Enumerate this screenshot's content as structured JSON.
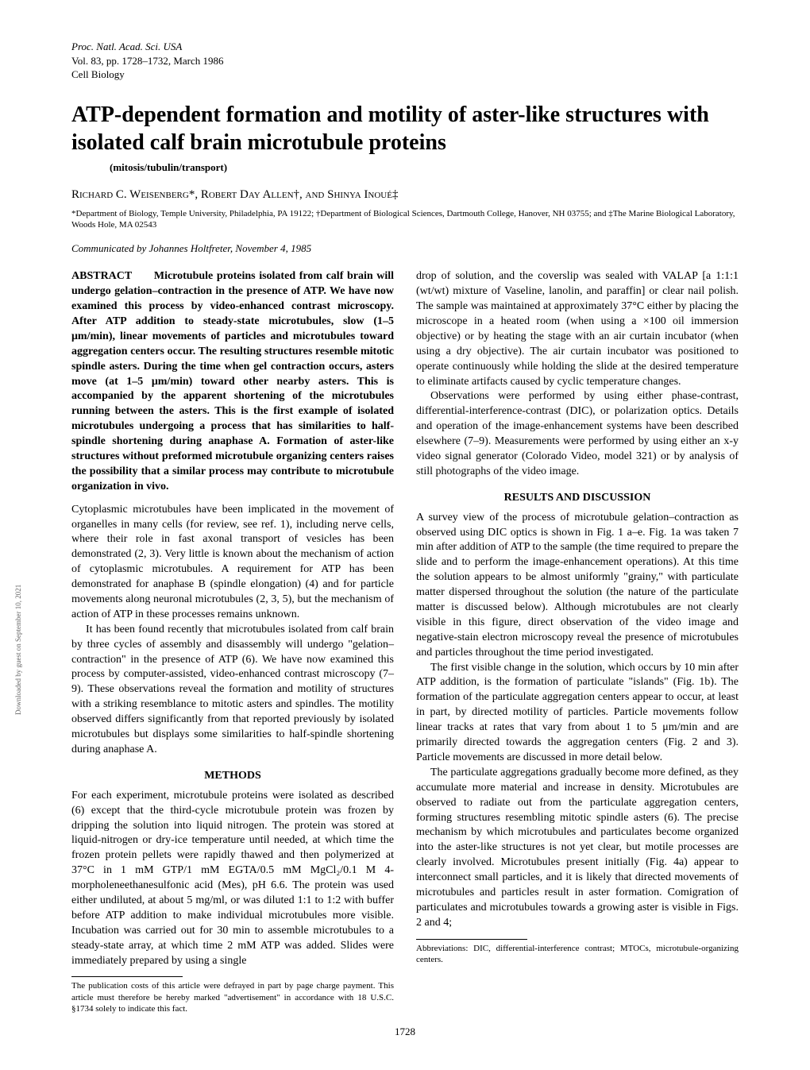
{
  "journal": {
    "line1": "Proc. Natl. Acad. Sci. USA",
    "line2": "Vol. 83, pp. 1728–1732, March 1986",
    "line3": "Cell Biology"
  },
  "title": "ATP-dependent formation and motility of aster-like structures with isolated calf brain microtubule proteins",
  "keywords": "(mitosis/tubulin/transport)",
  "authors": "Richard C. Weisenberg*, Robert Day Allen†, and Shinya Inoué‡",
  "affiliations": "*Department of Biology, Temple University, Philadelphia, PA 19122; †Department of Biological Sciences, Dartmouth College, Hanover, NH 03755; and ‡The Marine Biological Laboratory, Woods Hole, MA 02543",
  "communicated": "Communicated by Johannes Holtfreter, November 4, 1985",
  "abstract_label": "ABSTRACT",
  "abstract_body": "Microtubule proteins isolated from calf brain will undergo gelation–contraction in the presence of ATP. We have now examined this process by video-enhanced contrast microscopy. After ATP addition to steady-state microtubules, slow (1–5 μm/min), linear movements of particles and microtubules toward aggregation centers occur. The resulting structures resemble mitotic spindle asters. During the time when gel contraction occurs, asters move (at 1–5 μm/min) toward other nearby asters. This is accompanied by the apparent shortening of the microtubules running between the asters. This is the first example of isolated microtubules undergoing a process that has similarities to half-spindle shortening during anaphase A. Formation of aster-like structures without preformed microtubule organizing centers raises the possibility that a similar process may contribute to microtubule organization in vivo.",
  "left_col": {
    "p1": "Cytoplasmic microtubules have been implicated in the movement of organelles in many cells (for review, see ref. 1), including nerve cells, where their role in fast axonal transport of vesicles has been demonstrated (2, 3). Very little is known about the mechanism of action of cytoplasmic microtubules. A requirement for ATP has been demonstrated for anaphase B (spindle elongation) (4) and for particle movements along neuronal microtubules (2, 3, 5), but the mechanism of action of ATP in these processes remains unknown.",
    "p2": "It has been found recently that microtubules isolated from calf brain by three cycles of assembly and disassembly will undergo \"gelation–contraction\" in the presence of ATP (6). We have now examined this process by computer-assisted, video-enhanced contrast microscopy (7–9). These observations reveal the formation and motility of structures with a striking resemblance to mitotic asters and spindles. The motility observed differs significantly from that reported previously by isolated microtubules but displays some similarities to half-spindle shortening during anaphase A.",
    "methods_heading": "METHODS",
    "p3": "For each experiment, microtubule proteins were isolated as described (6) except that the third-cycle microtubule protein was frozen by dripping the solution into liquid nitrogen. The protein was stored at liquid-nitrogen or dry-ice temperature until needed, at which time the frozen protein pellets were rapidly thawed and then polymerized at 37°C in 1 mM GTP/1 mM EGTA/0.5 mM MgCl₂/0.1 M 4-morpholeneethanesulfonic acid (Mes), pH 6.6. The protein was used either undiluted, at about 5 mg/ml, or was diluted 1:1 to 1:2 with buffer before ATP addition to make individual microtubules more visible. Incubation was carried out for 30 min to assemble microtubules to a steady-state array, at which time 2 mM ATP was added. Slides were immediately prepared by using a single",
    "footnote": "The publication costs of this article were defrayed in part by page charge payment. This article must therefore be hereby marked \"advertisement\" in accordance with 18 U.S.C. §1734 solely to indicate this fact."
  },
  "right_col": {
    "p1": "drop of solution, and the coverslip was sealed with VALAP [a 1:1:1 (wt/wt) mixture of Vaseline, lanolin, and paraffin] or clear nail polish. The sample was maintained at approximately 37°C either by placing the microscope in a heated room (when using a ×100 oil immersion objective) or by heating the stage with an air curtain incubator (when using a dry objective). The air curtain incubator was positioned to operate continuously while holding the slide at the desired temperature to eliminate artifacts caused by cyclic temperature changes.",
    "p2": "Observations were performed by using either phase-contrast, differential-interference-contrast (DIC), or polarization optics. Details and operation of the image-enhancement systems have been described elsewhere (7–9). Measurements were performed by using either an x-y video signal generator (Colorado Video, model 321) or by analysis of still photographs of the video image.",
    "results_heading": "RESULTS AND DISCUSSION",
    "p3": "A survey view of the process of microtubule gelation–contraction as observed using DIC optics is shown in Fig. 1 a–e. Fig. 1a was taken 7 min after addition of ATP to the sample (the time required to prepare the slide and to perform the image-enhancement operations). At this time the solution appears to be almost uniformly \"grainy,\" with particulate matter dispersed throughout the solution (the nature of the particulate matter is discussed below). Although microtubules are not clearly visible in this figure, direct observation of the video image and negative-stain electron microscopy reveal the presence of microtubules and particles throughout the time period investigated.",
    "p4": "The first visible change in the solution, which occurs by 10 min after ATP addition, is the formation of particulate \"islands\" (Fig. 1b). The formation of the particulate aggregation centers appear to occur, at least in part, by directed motility of particles. Particle movements follow linear tracks at rates that vary from about 1 to 5 μm/min and are primarily directed towards the aggregation centers (Fig. 2 and 3). Particle movements are discussed in more detail below.",
    "p5": "The particulate aggregations gradually become more defined, as they accumulate more material and increase in density. Microtubules are observed to radiate out from the particulate aggregation centers, forming structures resembling mitotic spindle asters (6). The precise mechanism by which microtubules and particulates become organized into the aster-like structures is not yet clear, but motile processes are clearly involved. Microtubules present initially (Fig. 4a) appear to interconnect small particles, and it is likely that directed movements of microtubules and particles result in aster formation. Comigration of particulates and microtubules towards a growing aster is visible in Figs. 2 and 4;",
    "footnote": "Abbreviations: DIC, differential-interference contrast; MTOCs, microtubule-organizing centers."
  },
  "page_number": "1728",
  "side_text": "Downloaded by guest on September 10, 2021"
}
